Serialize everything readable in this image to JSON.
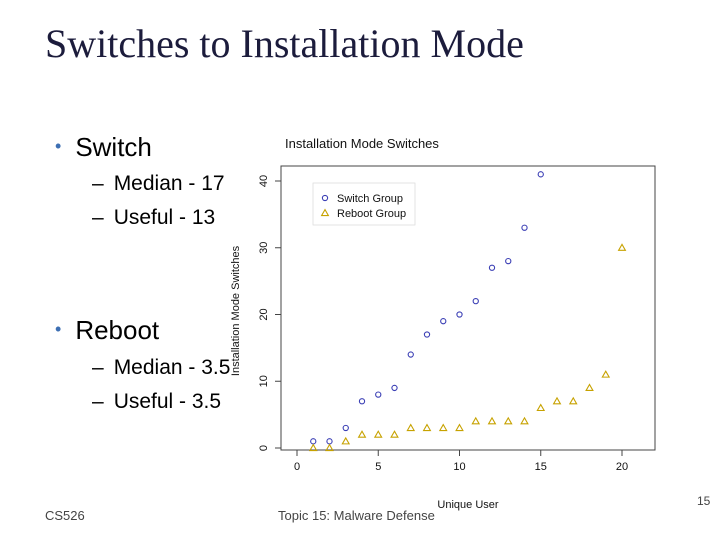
{
  "slide": {
    "title": "Switches to Installation Mode",
    "bullets": [
      {
        "label": "Switch",
        "subs": [
          "Median - 17",
          "Useful - 13"
        ]
      },
      {
        "label": "Reboot",
        "subs": [
          "Median - 3.5",
          "Useful - 3.5"
        ]
      }
    ]
  },
  "footer": {
    "left": "CS526",
    "center": "Topic 15: Malware Defense",
    "page": "15"
  },
  "colors": {
    "switch": "#3b3fb5",
    "reboot": "#c7a200",
    "title": "#1c1c3c",
    "bullet": "#3d6fb3"
  },
  "chart_data": {
    "type": "scatter",
    "title": "Installation Mode Switches",
    "xlabel": "Unique User",
    "ylabel": "Installation Mode Switches",
    "xlim": [
      0,
      21
    ],
    "ylim": [
      0,
      42
    ],
    "xticks": [
      0,
      5,
      10,
      15,
      20
    ],
    "yticks": [
      0,
      10,
      20,
      30,
      40
    ],
    "grid": false,
    "legend_position": "top-left",
    "series": [
      {
        "name": "Switch Group",
        "marker": "circle",
        "x": [
          1,
          2,
          3,
          4,
          5,
          6,
          7,
          8,
          9,
          10,
          11,
          12,
          13,
          14,
          15
        ],
        "y": [
          1,
          1,
          3,
          7,
          8,
          9,
          14,
          17,
          19,
          20,
          22,
          27,
          28,
          33,
          41
        ]
      },
      {
        "name": "Reboot Group",
        "marker": "triangle",
        "x": [
          1,
          2,
          3,
          4,
          5,
          6,
          7,
          8,
          9,
          10,
          11,
          12,
          13,
          14,
          15,
          16,
          17,
          18,
          19,
          20
        ],
        "y": [
          0,
          0,
          1,
          2,
          2,
          2,
          3,
          3,
          3,
          3,
          4,
          4,
          4,
          4,
          6,
          7,
          7,
          9,
          11,
          30
        ]
      }
    ]
  }
}
